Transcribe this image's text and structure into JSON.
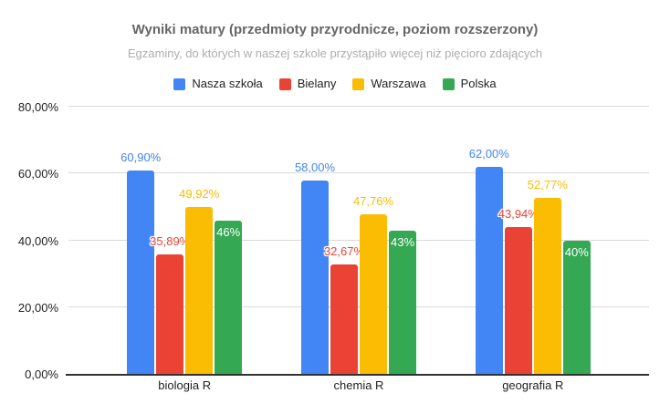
{
  "chart_data": {
    "type": "bar",
    "title": "Wyniki matury (przedmioty przyrodnicze, poziom rozszerzony)",
    "subtitle": "Egzaminy, do których w naszej szkole przystąpiło więcej niż pięcioro zdających",
    "legend_position": "top",
    "grid": true,
    "categories": [
      {
        "id": "biologia-r",
        "label": "biologia R"
      },
      {
        "id": "chemia-r",
        "label": "chemia R"
      },
      {
        "id": "geografia-r",
        "label": "geografia R"
      }
    ],
    "series": [
      {
        "id": "nasza-szkola",
        "name": "Nasza szkoła",
        "color": "#4285F4",
        "label_color": "#4285F4",
        "label_position": "above",
        "values": [
          60.9,
          58.0,
          62.0
        ],
        "value_labels": [
          "60,90%",
          "58,00%",
          "62,00%"
        ]
      },
      {
        "id": "bielany",
        "name": "Bielany",
        "color": "#EA4335",
        "label_color": "#EA4335",
        "label_position": "above",
        "values": [
          35.89,
          32.67,
          43.94
        ],
        "value_labels": [
          "35,89%",
          "32,67%",
          "43,94%"
        ]
      },
      {
        "id": "warszawa",
        "name": "Warszawa",
        "color": "#FBBC04",
        "label_color": "#FBBC04",
        "label_position": "above",
        "values": [
          49.92,
          47.76,
          52.77
        ],
        "value_labels": [
          "49,92%",
          "47,76%",
          "52,77%"
        ]
      },
      {
        "id": "polska",
        "name": "Polska",
        "color": "#34A853",
        "label_color": "#FFFFFF",
        "label_position": "inside",
        "values": [
          46,
          43,
          40
        ],
        "value_labels": [
          "46%",
          "43%",
          "40%"
        ]
      }
    ],
    "y_axis": {
      "max": 80,
      "ticks": [
        {
          "value": 0,
          "label": "0,00%"
        },
        {
          "value": 20,
          "label": "20,00%"
        },
        {
          "value": 40,
          "label": "40,00%"
        },
        {
          "value": 60,
          "label": "60,00%"
        },
        {
          "value": 80,
          "label": "80,00%"
        }
      ]
    },
    "group_centers_pct": [
      20,
      50,
      80
    ]
  }
}
